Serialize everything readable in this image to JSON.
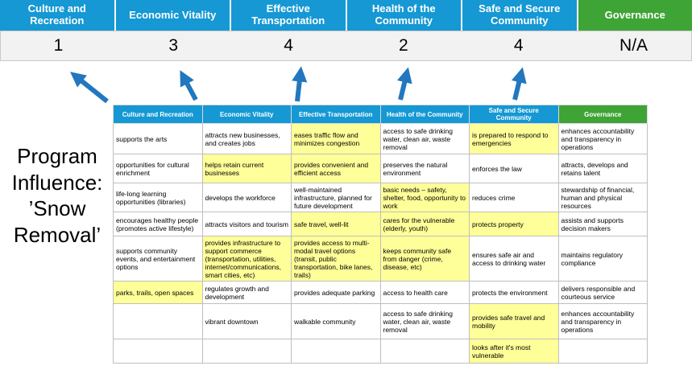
{
  "program_label": "Program Influence: ’Snow Removal’",
  "colors": {
    "header_blue": "#1598D4",
    "header_green": "#3EA435",
    "highlight_yellow": "#FFFF99",
    "arrow_blue": "#2277BE",
    "score_bg": "#F2F2F2"
  },
  "summary": {
    "items": [
      {
        "label": "Culture and Recreation",
        "score": "1",
        "theme": "blue"
      },
      {
        "label": "Economic Vitality",
        "score": "3",
        "theme": "blue"
      },
      {
        "label": "Effective Transportation",
        "score": "4",
        "theme": "blue"
      },
      {
        "label": "Health of the Community",
        "score": "2",
        "theme": "blue"
      },
      {
        "label": "Safe and Secure Community",
        "score": "4",
        "theme": "blue"
      },
      {
        "label": "Governance",
        "score": "N/A",
        "theme": "green"
      }
    ]
  },
  "matrix": {
    "headers": [
      {
        "label": "Culture and Recreation",
        "theme": "blue"
      },
      {
        "label": "Economic Vitality",
        "theme": "blue"
      },
      {
        "label": "Effective Transportation",
        "theme": "blue"
      },
      {
        "label": "Health of the Community",
        "theme": "blue"
      },
      {
        "label": "Safe and Secure Community",
        "theme": "blue"
      },
      {
        "label": "Governance",
        "theme": "green"
      }
    ],
    "rows": [
      [
        {
          "text": "supports the arts",
          "hl": false
        },
        {
          "text": "attracts new businesses, and creates jobs",
          "hl": false
        },
        {
          "text": "eases traffic flow and minimizes congestion",
          "hl": true
        },
        {
          "text": "access to safe drinking water, clean air, waste removal",
          "hl": false
        },
        {
          "text": "is prepared to respond to emergencies",
          "hl": true
        },
        {
          "text": "enhances accountability and transparency in operations",
          "hl": false
        }
      ],
      [
        {
          "text": "opportunities for cultural enrichment",
          "hl": false
        },
        {
          "text": "helps retain current businesses",
          "hl": true
        },
        {
          "text": "provides convenient and efficient access",
          "hl": true
        },
        {
          "text": "preserves the natural environment",
          "hl": false
        },
        {
          "text": "enforces the law",
          "hl": false
        },
        {
          "text": "attracts, develops and retains talent",
          "hl": false
        }
      ],
      [
        {
          "text": "life-long learning opportunities (libraries)",
          "hl": false
        },
        {
          "text": "develops the workforce",
          "hl": false
        },
        {
          "text": "well-maintained infrastructure, planned for future development",
          "hl": false
        },
        {
          "text": "basic needs – safety, shelter, food, opportunity to work",
          "hl": true
        },
        {
          "text": "reduces crime",
          "hl": false
        },
        {
          "text": "stewardship of financial, human and physical resources",
          "hl": false
        }
      ],
      [
        {
          "text": "encourages healthy people (promotes active lifestyle)",
          "hl": false
        },
        {
          "text": "attracts visitors and tourism",
          "hl": false
        },
        {
          "text": "safe travel, well-lit",
          "hl": true
        },
        {
          "text": "cares for the vulnerable (elderly, youth)",
          "hl": true
        },
        {
          "text": "protects property",
          "hl": true
        },
        {
          "text": "assists and supports decision makers",
          "hl": false
        }
      ],
      [
        {
          "text": "supports community events, and entertainment options",
          "hl": false
        },
        {
          "text": "provides infrastructure to support commerce (transportation, utilities, internet/communications, smart cities, etc)",
          "hl": true
        },
        {
          "text": "provides access to multi-modal travel options (transit, public transportation, bike lanes, trails)",
          "hl": true
        },
        {
          "text": "keeps community safe from danger (crime, disease, etc)",
          "hl": true
        },
        {
          "text": "ensures safe air and access to drinking water",
          "hl": false
        },
        {
          "text": "maintains regulatory compliance",
          "hl": false
        }
      ],
      [
        {
          "text": "parks, trails, open spaces",
          "hl": true
        },
        {
          "text": "regulates growth and development",
          "hl": false
        },
        {
          "text": "provides adequate parking",
          "hl": false
        },
        {
          "text": "access to health care",
          "hl": false
        },
        {
          "text": "protects the environment",
          "hl": false
        },
        {
          "text": "delivers responsible and courteous service",
          "hl": false
        }
      ],
      [
        {
          "text": "",
          "hl": false
        },
        {
          "text": "vibrant downtown",
          "hl": false
        },
        {
          "text": "walkable community",
          "hl": false
        },
        {
          "text": "access to safe drinking water, clean air, waste removal",
          "hl": false
        },
        {
          "text": "provides safe travel and mobility",
          "hl": true
        },
        {
          "text": "enhances accountability and transparency in operations",
          "hl": false
        }
      ],
      [
        {
          "text": "",
          "hl": false
        },
        {
          "text": "",
          "hl": false
        },
        {
          "text": "",
          "hl": false
        },
        {
          "text": "",
          "hl": false
        },
        {
          "text": "looks after it's most vulnerable",
          "hl": true
        },
        {
          "text": "",
          "hl": false
        }
      ]
    ]
  }
}
